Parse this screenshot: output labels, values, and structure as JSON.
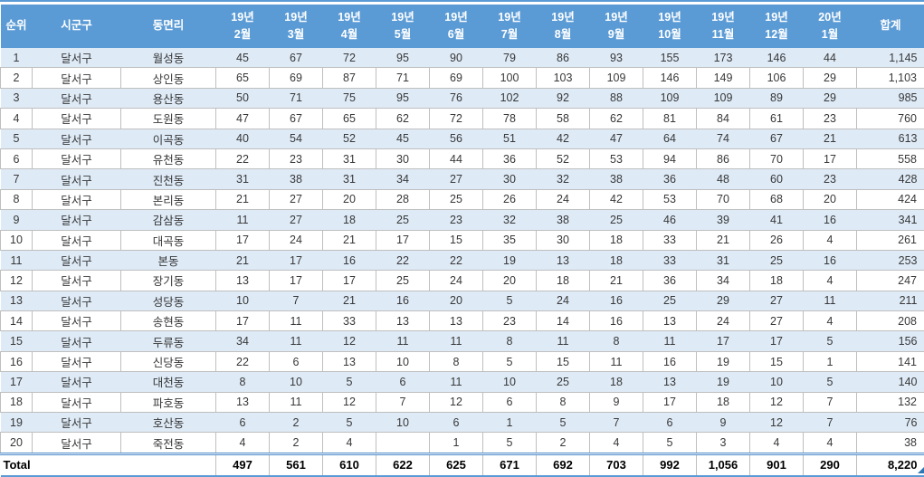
{
  "colors": {
    "header_bg": "#5B9BD5",
    "band_bg": "#DEEAF6",
    "grid": "#BFBFBF",
    "accent": "#2E75B6"
  },
  "table": {
    "columns": {
      "rank": "순위",
      "district": "시군구",
      "neighborhood": "동면리",
      "months": [
        {
          "line1": "19년",
          "line2": "2월"
        },
        {
          "line1": "19년",
          "line2": "3월"
        },
        {
          "line1": "19년",
          "line2": "4월"
        },
        {
          "line1": "19년",
          "line2": "5월"
        },
        {
          "line1": "19년",
          "line2": "6월"
        },
        {
          "line1": "19년",
          "line2": "7월"
        },
        {
          "line1": "19년",
          "line2": "8월"
        },
        {
          "line1": "19년",
          "line2": "9월"
        },
        {
          "line1": "19년",
          "line2": "10월"
        },
        {
          "line1": "19년",
          "line2": "11월"
        },
        {
          "line1": "19년",
          "line2": "12월"
        },
        {
          "line1": "20년",
          "line2": "1월"
        }
      ],
      "total": "합계"
    },
    "rows": [
      {
        "rank": "1",
        "district": "달서구",
        "neighborhood": "월성동",
        "values": [
          "45",
          "67",
          "72",
          "95",
          "90",
          "79",
          "86",
          "93",
          "155",
          "173",
          "146",
          "44"
        ],
        "total": "1,145"
      },
      {
        "rank": "2",
        "district": "달서구",
        "neighborhood": "상인동",
        "values": [
          "65",
          "69",
          "87",
          "71",
          "69",
          "100",
          "103",
          "109",
          "146",
          "149",
          "106",
          "29"
        ],
        "total": "1,103"
      },
      {
        "rank": "3",
        "district": "달서구",
        "neighborhood": "용산동",
        "values": [
          "50",
          "71",
          "75",
          "95",
          "76",
          "102",
          "92",
          "88",
          "109",
          "109",
          "89",
          "29"
        ],
        "total": "985"
      },
      {
        "rank": "4",
        "district": "달서구",
        "neighborhood": "도원동",
        "values": [
          "47",
          "67",
          "65",
          "62",
          "72",
          "78",
          "58",
          "62",
          "81",
          "84",
          "61",
          "23"
        ],
        "total": "760"
      },
      {
        "rank": "5",
        "district": "달서구",
        "neighborhood": "이곡동",
        "values": [
          "40",
          "54",
          "52",
          "45",
          "56",
          "51",
          "42",
          "47",
          "64",
          "74",
          "67",
          "21"
        ],
        "total": "613"
      },
      {
        "rank": "6",
        "district": "달서구",
        "neighborhood": "유천동",
        "values": [
          "22",
          "23",
          "31",
          "30",
          "44",
          "36",
          "52",
          "53",
          "94",
          "86",
          "70",
          "17"
        ],
        "total": "558"
      },
      {
        "rank": "7",
        "district": "달서구",
        "neighborhood": "진천동",
        "values": [
          "31",
          "38",
          "31",
          "34",
          "27",
          "30",
          "32",
          "38",
          "36",
          "48",
          "60",
          "23"
        ],
        "total": "428"
      },
      {
        "rank": "8",
        "district": "달서구",
        "neighborhood": "본리동",
        "values": [
          "21",
          "27",
          "20",
          "28",
          "25",
          "26",
          "24",
          "42",
          "53",
          "70",
          "68",
          "20"
        ],
        "total": "424"
      },
      {
        "rank": "9",
        "district": "달서구",
        "neighborhood": "감삼동",
        "values": [
          "11",
          "27",
          "18",
          "25",
          "23",
          "32",
          "38",
          "25",
          "46",
          "39",
          "41",
          "16"
        ],
        "total": "341"
      },
      {
        "rank": "10",
        "district": "달서구",
        "neighborhood": "대곡동",
        "values": [
          "17",
          "24",
          "21",
          "17",
          "15",
          "35",
          "30",
          "18",
          "33",
          "21",
          "26",
          "4"
        ],
        "total": "261"
      },
      {
        "rank": "11",
        "district": "달서구",
        "neighborhood": "본동",
        "values": [
          "21",
          "17",
          "16",
          "22",
          "22",
          "19",
          "13",
          "18",
          "33",
          "31",
          "25",
          "16"
        ],
        "total": "253"
      },
      {
        "rank": "12",
        "district": "달서구",
        "neighborhood": "장기동",
        "values": [
          "13",
          "17",
          "17",
          "25",
          "24",
          "20",
          "18",
          "21",
          "36",
          "34",
          "18",
          "4"
        ],
        "total": "247"
      },
      {
        "rank": "13",
        "district": "달서구",
        "neighborhood": "성당동",
        "values": [
          "10",
          "7",
          "21",
          "16",
          "20",
          "5",
          "24",
          "16",
          "25",
          "29",
          "27",
          "11"
        ],
        "total": "211"
      },
      {
        "rank": "14",
        "district": "달서구",
        "neighborhood": "송현동",
        "values": [
          "17",
          "11",
          "33",
          "13",
          "13",
          "23",
          "14",
          "16",
          "13",
          "24",
          "27",
          "4"
        ],
        "total": "208"
      },
      {
        "rank": "15",
        "district": "달서구",
        "neighborhood": "두류동",
        "values": [
          "34",
          "11",
          "12",
          "11",
          "11",
          "8",
          "11",
          "8",
          "11",
          "17",
          "17",
          "5"
        ],
        "total": "156"
      },
      {
        "rank": "16",
        "district": "달서구",
        "neighborhood": "신당동",
        "values": [
          "22",
          "6",
          "13",
          "10",
          "8",
          "5",
          "15",
          "11",
          "16",
          "19",
          "15",
          "1"
        ],
        "total": "141"
      },
      {
        "rank": "17",
        "district": "달서구",
        "neighborhood": "대천동",
        "values": [
          "8",
          "10",
          "5",
          "6",
          "11",
          "10",
          "25",
          "18",
          "13",
          "19",
          "10",
          "5"
        ],
        "total": "140"
      },
      {
        "rank": "18",
        "district": "달서구",
        "neighborhood": "파호동",
        "values": [
          "13",
          "11",
          "12",
          "7",
          "12",
          "6",
          "8",
          "9",
          "17",
          "18",
          "12",
          "7"
        ],
        "total": "132"
      },
      {
        "rank": "19",
        "district": "달서구",
        "neighborhood": "호산동",
        "values": [
          "6",
          "2",
          "5",
          "10",
          "6",
          "1",
          "5",
          "7",
          "6",
          "9",
          "12",
          "7"
        ],
        "total": "76"
      },
      {
        "rank": "20",
        "district": "달서구",
        "neighborhood": "죽전동",
        "values": [
          "4",
          "2",
          "4",
          "",
          "1",
          "5",
          "2",
          "4",
          "5",
          "3",
          "4",
          "4"
        ],
        "total": "38"
      }
    ],
    "total_row": {
      "label": "Total",
      "values": [
        "497",
        "561",
        "610",
        "622",
        "625",
        "671",
        "692",
        "703",
        "992",
        "1,056",
        "901",
        "290"
      ],
      "total": "8,220"
    }
  }
}
